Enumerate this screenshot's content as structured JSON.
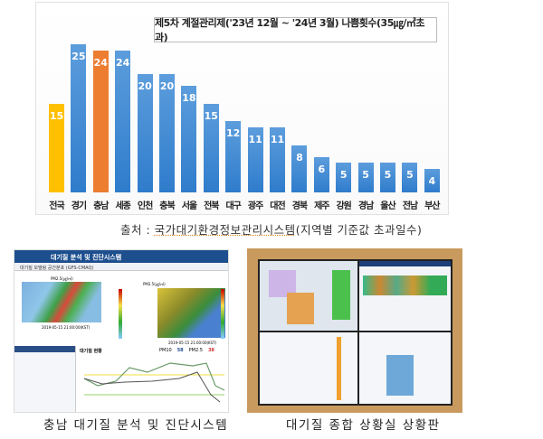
{
  "chart_data": {
    "type": "bar",
    "title": "제5차 계절관리제('23년 12월 ~ '24년 3월)  나쁨횟수(35㎍/㎥초과)",
    "categories": [
      "전국",
      "경기",
      "충남",
      "세종",
      "인천",
      "충북",
      "서울",
      "전북",
      "대구",
      "광주",
      "대전",
      "경북",
      "제주",
      "강원",
      "경남",
      "울산",
      "전남",
      "부산"
    ],
    "values": [
      15,
      25,
      24,
      24,
      20,
      20,
      18,
      15,
      12,
      11,
      11,
      8,
      6,
      5,
      5,
      5,
      5,
      4
    ],
    "highlight_colors": {
      "전국": "#ffc000",
      "충남": "#ed7d31"
    },
    "default_color": "#3d85d0",
    "ylim": [
      0,
      25
    ],
    "grid": false,
    "legend": "none"
  },
  "source": {
    "prefix": "출처 : ",
    "name": "국가대기환경정보관리시스템",
    "suffix": "(지역별 기준값 초과일수)"
  },
  "left_image": {
    "header_title": "대기질 분석 및 진단시스템",
    "subheader": "대기질 모델링 공간분포 (GFS-CMAQ)",
    "map_label": "PM2.5(㎍/㎥)",
    "timestamp": "2019-05-15 21:00:00(KST)",
    "status_title": "대기질 현황",
    "pm10_label": "PM10",
    "pm10_value": "58",
    "pm25_label": "PM2.5",
    "pm25_value": "38"
  },
  "captions": {
    "left": "충남 대기질 분석 및 진단시스템",
    "right": "대기질 종합 상황실 상황판"
  }
}
